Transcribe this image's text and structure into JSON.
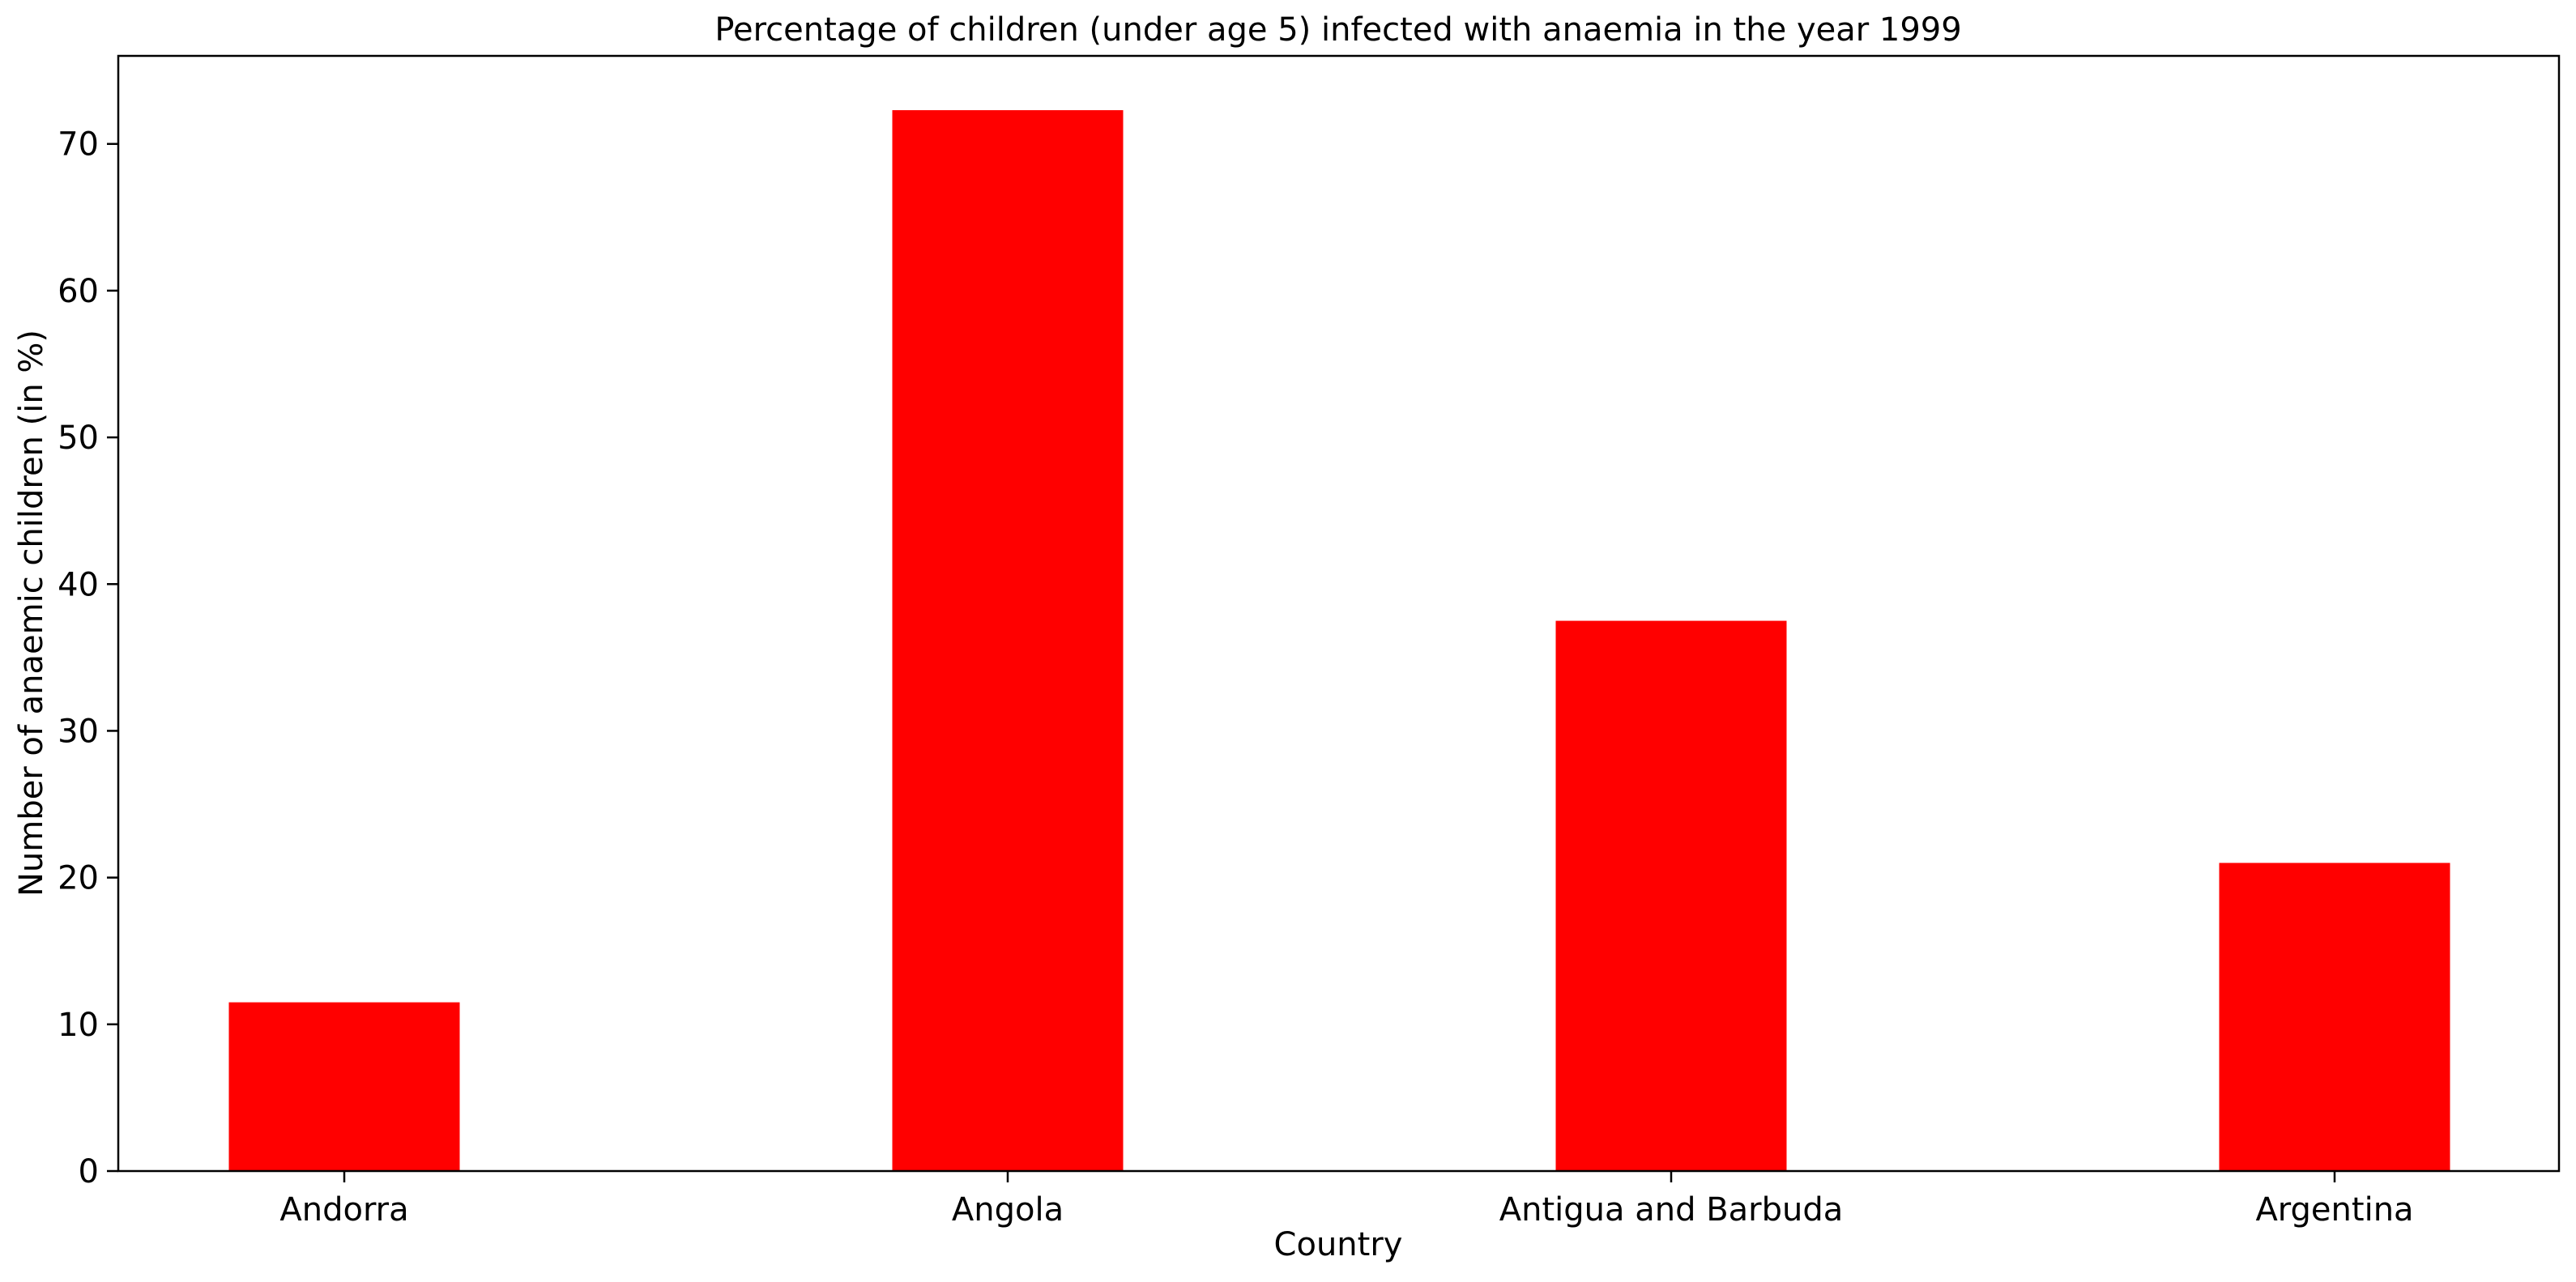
{
  "chart_data": {
    "type": "bar",
    "title": "Percentage of children (under age 5) infected with anaemia in the year 1999",
    "xlabel": "Country",
    "ylabel": "Number of anaemic children (in %)",
    "categories": [
      "Andorra",
      "Angola",
      "Antigua and Barbuda",
      "Argentina"
    ],
    "values": [
      11.5,
      72.3,
      37.5,
      21.0
    ],
    "ylim": [
      0,
      76
    ],
    "yticks": [
      0,
      10,
      20,
      30,
      40,
      50,
      60,
      70
    ],
    "ytick_labels": [
      "0",
      "10",
      "20",
      "30",
      "40",
      "50",
      "60",
      "70"
    ],
    "bar_color": "#ff0000",
    "grid": false,
    "legend": "none"
  }
}
